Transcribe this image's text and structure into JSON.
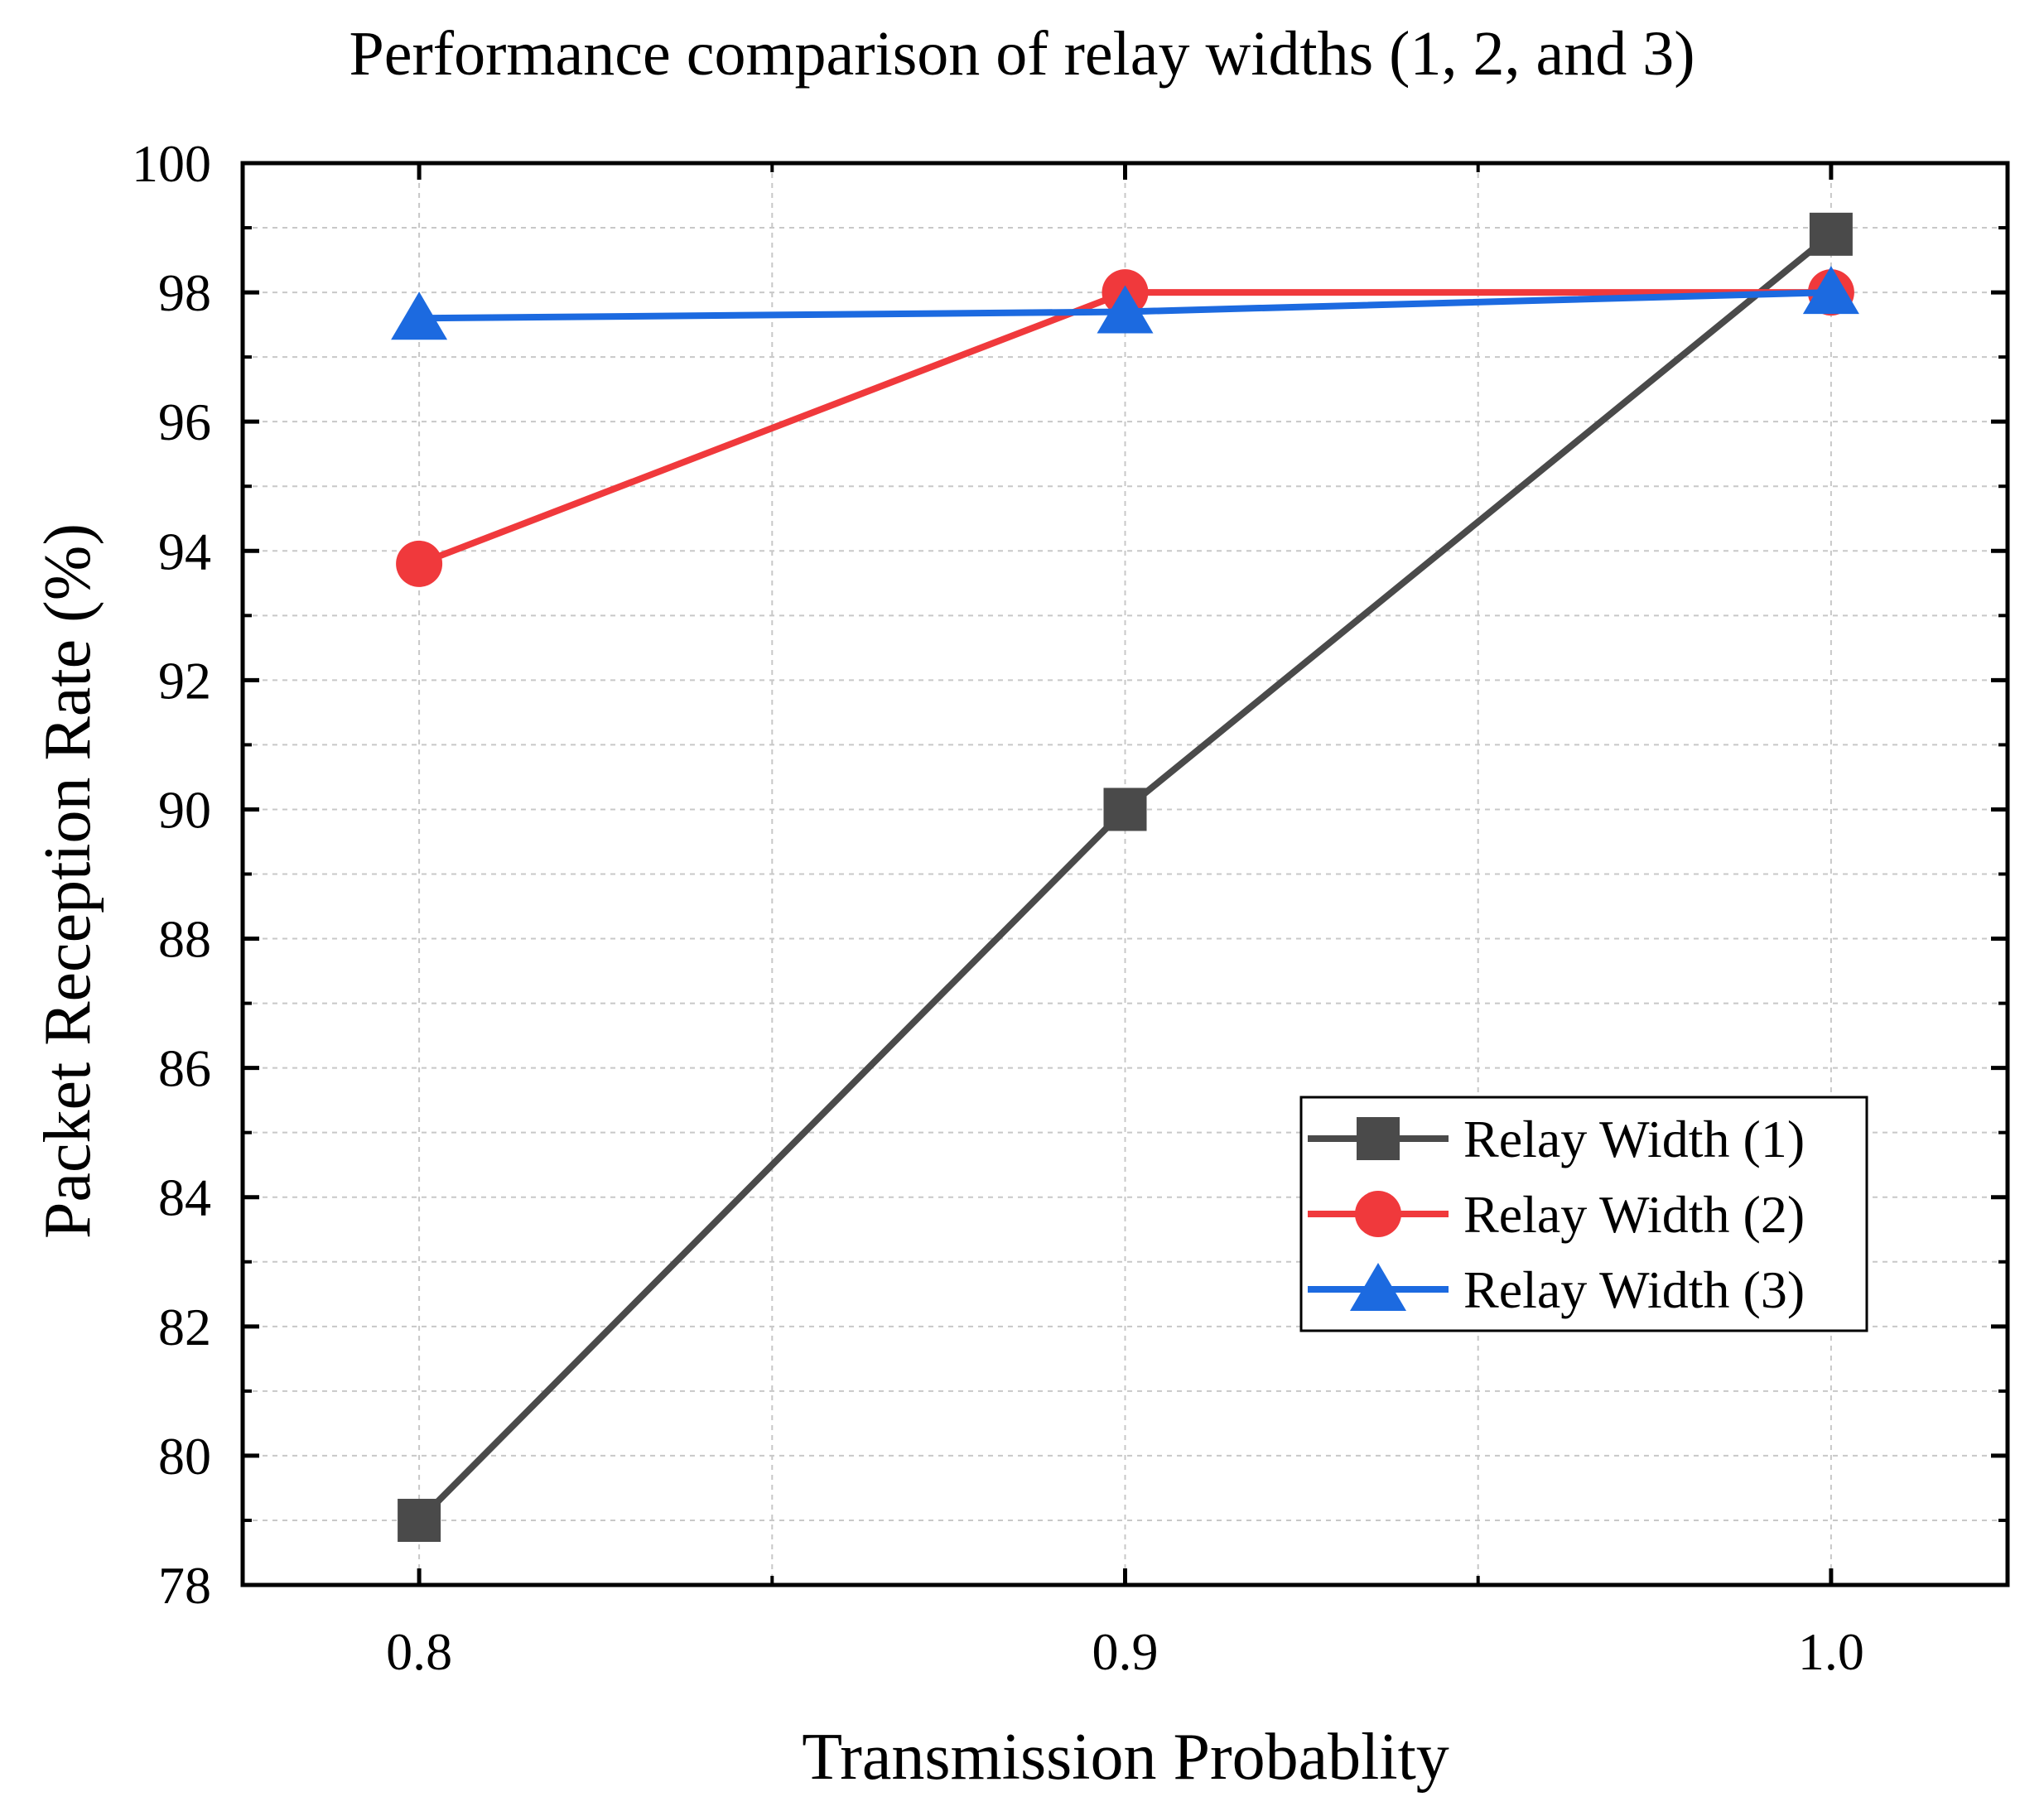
{
  "chart_data": {
    "type": "line",
    "title": "Performance comparison of relay widths (1, 2, and 3)",
    "xlabel": "Transmission Probablity",
    "ylabel": "Packet Reception Rate (%)",
    "x": [
      0.8,
      0.9,
      1.0
    ],
    "x_tick_labels": [
      "0.8",
      "0.9",
      "1.0"
    ],
    "xlim": [
      0.775,
      1.025
    ],
    "ylim": [
      78,
      100
    ],
    "y_ticks": [
      78,
      80,
      82,
      84,
      86,
      88,
      90,
      92,
      94,
      96,
      98,
      100
    ],
    "y_tick_labels": [
      "78",
      "80",
      "82",
      "84",
      "86",
      "88",
      "90",
      "92",
      "94",
      "96",
      "98",
      "100"
    ],
    "grid": true,
    "legend_position": "bottom-right",
    "series": [
      {
        "name": "Relay Width (1)",
        "values": [
          79.0,
          90.0,
          98.9
        ],
        "color": "#4a4a4a",
        "marker": "square"
      },
      {
        "name": "Relay Width (2)",
        "values": [
          93.8,
          98.0,
          98.0
        ],
        "color": "#f0393c",
        "marker": "circle"
      },
      {
        "name": "Relay Width (3)",
        "values": [
          97.6,
          97.7,
          98.0
        ],
        "color": "#1c6ae0",
        "marker": "triangle"
      }
    ]
  }
}
